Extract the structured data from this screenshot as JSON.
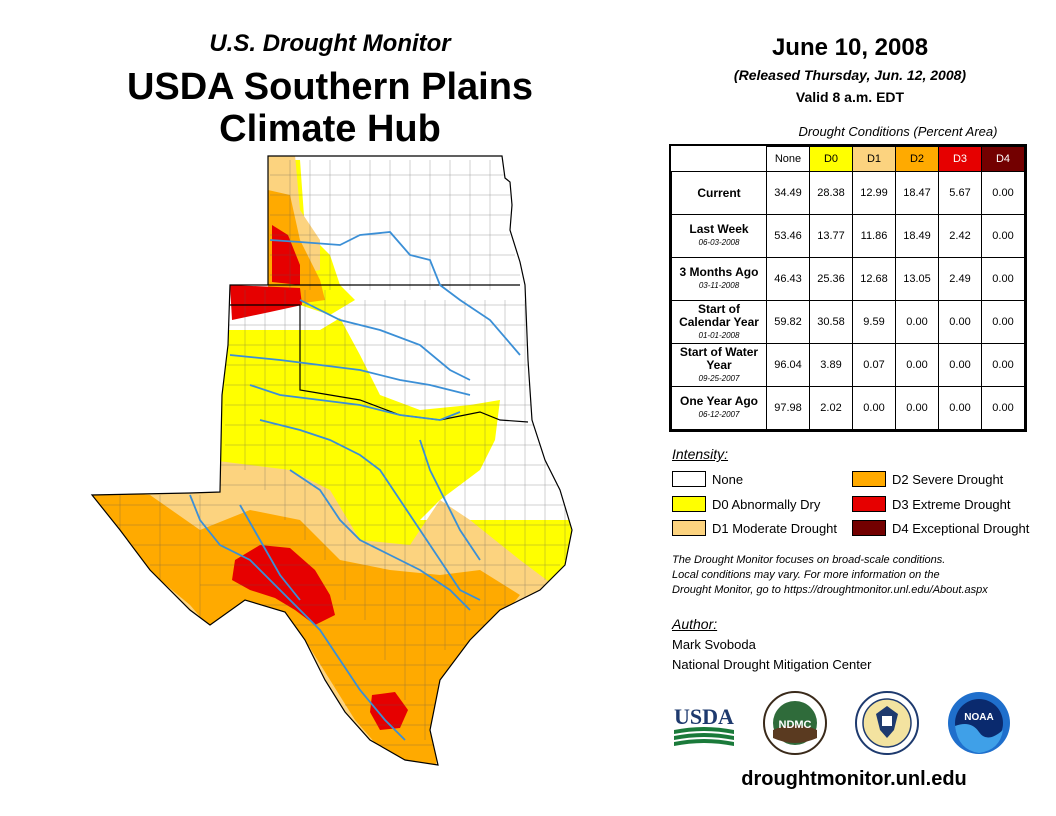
{
  "header": {
    "subtitle": "U.S. Drought Monitor",
    "title_line1": "USDA Southern Plains",
    "title_line2": "Climate Hub"
  },
  "date_block": {
    "date": "June 10, 2008",
    "released": "(Released Thursday, Jun. 12, 2008)",
    "valid": "Valid 8 a.m. EDT"
  },
  "table": {
    "caption": "Drought Conditions (Percent Area)",
    "columns": [
      "None",
      "D0",
      "D1",
      "D2",
      "D3",
      "D4"
    ],
    "rows": [
      {
        "label": "Current",
        "date": "",
        "values": [
          "34.49",
          "28.38",
          "12.99",
          "18.47",
          "5.67",
          "0.00"
        ]
      },
      {
        "label": "Last Week",
        "date": "06-03-2008",
        "values": [
          "53.46",
          "13.77",
          "11.86",
          "18.49",
          "2.42",
          "0.00"
        ]
      },
      {
        "label": "3 Months Ago",
        "date": "03-11-2008",
        "values": [
          "46.43",
          "25.36",
          "12.68",
          "13.05",
          "2.49",
          "0.00"
        ]
      },
      {
        "label": "Start of Calendar Year",
        "date": "01-01-2008",
        "values": [
          "59.82",
          "30.58",
          "9.59",
          "0.00",
          "0.00",
          "0.00"
        ]
      },
      {
        "label": "Start of Water Year",
        "date": "09-25-2007",
        "values": [
          "96.04",
          "3.89",
          "0.07",
          "0.00",
          "0.00",
          "0.00"
        ]
      },
      {
        "label": "One Year Ago",
        "date": "06-12-2007",
        "values": [
          "97.98",
          "2.02",
          "0.00",
          "0.00",
          "0.00",
          "0.00"
        ]
      }
    ]
  },
  "legend": {
    "title": "Intensity:",
    "items": [
      {
        "label": "None",
        "color": "#ffffff"
      },
      {
        "label": "D0 Abnormally Dry",
        "color": "#ffff00"
      },
      {
        "label": "D1 Moderate Drought",
        "color": "#fcd37f"
      },
      {
        "label": "D2 Severe Drought",
        "color": "#ffaa00"
      },
      {
        "label": "D3 Extreme Drought",
        "color": "#e60000"
      },
      {
        "label": "D4 Exceptional Drought",
        "color": "#730000"
      }
    ]
  },
  "note": {
    "line1": "The Drought Monitor focuses on broad-scale conditions.",
    "line2": "Local conditions may vary. For more information on the",
    "line3": "Drought Monitor, go to https://droughtmonitor.unl.edu/About.aspx"
  },
  "author": {
    "title": "Author:",
    "name": "Mark Svoboda",
    "org": "National Drought Mitigation Center"
  },
  "logos": {
    "usda": "USDA",
    "ndmc": "NDMC",
    "noaa": "NOAA"
  },
  "footer": {
    "url": "droughtmonitor.unl.edu"
  },
  "colors": {
    "none": "#ffffff",
    "d0": "#ffff00",
    "d1": "#fcd37f",
    "d2": "#ffaa00",
    "d3": "#e60000",
    "d4": "#730000",
    "river": "#3b8fd6"
  }
}
